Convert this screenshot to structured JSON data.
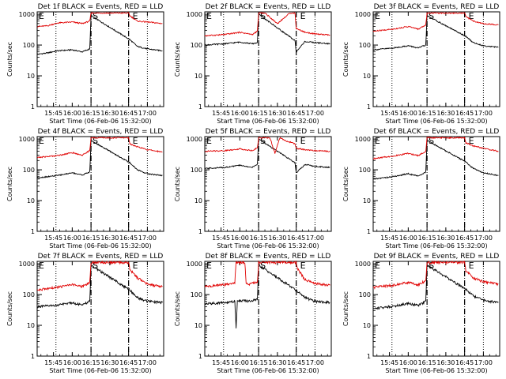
{
  "figure": {
    "colors": {
      "events": "#000000",
      "lld": "#e00000",
      "axes": "#000000",
      "background": "#ffffff"
    }
  },
  "chart_data": [
    {
      "type": "line",
      "title": "Det 1f BLACK = Events, RED = LLD",
      "xlabel": "Start Time (06-Feb-06 15:32:00)",
      "ylabel": "Counts/sec",
      "yscale": "log",
      "ylim": [
        1,
        1200
      ],
      "xlim": [
        "15:32",
        "17:13"
      ],
      "x_tick_labels": [
        "15:45",
        "16:00",
        "16:15",
        "16:30",
        "16:45",
        "17:00"
      ],
      "y_tick_labels": [
        "1",
        "10",
        "100",
        "1000"
      ],
      "markers": {
        "S": "16:15",
        "E": "16:45"
      },
      "dotted_lines": [
        "15:47",
        "16:15",
        "16:45",
        "17:00"
      ],
      "dashed_lines": [
        "16:15",
        "16:45"
      ],
      "grid": false,
      "series": [
        {
          "name": "Events",
          "color": "#000000",
          "x": [
            "15:32",
            "15:40",
            "15:48",
            "16:00",
            "16:08",
            "16:14",
            "16:15",
            "16:46",
            "16:52",
            "17:00",
            "17:12"
          ],
          "values": [
            50,
            55,
            65,
            70,
            60,
            75,
            900,
            150,
            90,
            75,
            65
          ]
        },
        {
          "name": "LLD",
          "color": "#e00000",
          "x": [
            "15:32",
            "15:40",
            "15:48",
            "16:00",
            "16:08",
            "16:14",
            "16:15",
            "16:45",
            "16:46",
            "16:52",
            "17:00",
            "17:12"
          ],
          "values": [
            400,
            420,
            520,
            560,
            500,
            600,
            1100,
            1100,
            900,
            600,
            560,
            500
          ]
        }
      ]
    },
    {
      "type": "line",
      "title": "Det 2f BLACK = Events, RED = LLD",
      "xlabel": "Start Time (06-Feb-06 15:32:00)",
      "ylabel": "Counts/sec",
      "yscale": "log",
      "ylim": [
        1,
        1200
      ],
      "xlim": [
        "15:32",
        "17:13"
      ],
      "x_tick_labels": [
        "15:45",
        "16:00",
        "16:15",
        "16:30",
        "16:45",
        "17:00"
      ],
      "y_tick_labels": [
        "1",
        "10",
        "100",
        "1000"
      ],
      "markers": {
        "S": "16:15",
        "E": "16:45"
      },
      "dotted_lines": [
        "15:47",
        "16:15",
        "16:45",
        "17:00"
      ],
      "dashed_lines": [
        "16:15",
        "16:45"
      ],
      "grid": false,
      "series": [
        {
          "name": "Events",
          "color": "#000000",
          "x": [
            "15:32",
            "15:48",
            "16:00",
            "16:10",
            "16:14",
            "16:15",
            "16:44",
            "16:45",
            "16:52",
            "17:00",
            "17:12"
          ],
          "values": [
            100,
            110,
            125,
            110,
            120,
            1000,
            140,
            60,
            130,
            120,
            110
          ]
        },
        {
          "name": "LLD",
          "color": "#e00000",
          "x": [
            "15:32",
            "15:48",
            "16:00",
            "16:10",
            "16:14",
            "16:15",
            "16:20",
            "16:30",
            "16:40",
            "16:44",
            "16:45",
            "16:52",
            "17:00",
            "17:12"
          ],
          "values": [
            200,
            220,
            260,
            220,
            280,
            1100,
            1100,
            500,
            1100,
            1100,
            350,
            260,
            230,
            210
          ]
        }
      ]
    },
    {
      "type": "line",
      "title": "Det 3f BLACK = Events, RED = LLD",
      "xlabel": "Start Time (06-Feb-06 15:32:00)",
      "ylabel": "Counts/sec",
      "yscale": "log",
      "ylim": [
        1,
        1200
      ],
      "xlim": [
        "15:32",
        "17:13"
      ],
      "x_tick_labels": [
        "15:45",
        "16:00",
        "16:15",
        "16:30",
        "16:45",
        "17:00"
      ],
      "y_tick_labels": [
        "1",
        "10",
        "100",
        "1000"
      ],
      "markers": {
        "S": "16:15",
        "E": "16:45"
      },
      "dotted_lines": [
        "15:47",
        "16:15",
        "16:45",
        "17:00"
      ],
      "dashed_lines": [
        "16:15",
        "16:45"
      ],
      "grid": false,
      "series": [
        {
          "name": "Events",
          "color": "#000000",
          "x": [
            "15:32",
            "15:48",
            "16:00",
            "16:08",
            "16:14",
            "16:15",
            "16:46",
            "16:52",
            "17:00",
            "17:12"
          ],
          "values": [
            70,
            80,
            95,
            80,
            100,
            900,
            190,
            120,
            95,
            85
          ]
        },
        {
          "name": "LLD",
          "color": "#e00000",
          "x": [
            "15:32",
            "15:48",
            "16:00",
            "16:08",
            "16:14",
            "16:15",
            "16:45",
            "16:46",
            "16:52",
            "17:00",
            "17:12"
          ],
          "values": [
            280,
            330,
            400,
            330,
            450,
            1100,
            1100,
            850,
            600,
            500,
            450
          ]
        }
      ]
    },
    {
      "type": "line",
      "title": "Det 4f BLACK = Events, RED = LLD",
      "xlabel": "Start Time (06-Feb-06 15:32:00)",
      "ylabel": "Counts/sec",
      "yscale": "log",
      "ylim": [
        1,
        1200
      ],
      "xlim": [
        "15:32",
        "17:13"
      ],
      "x_tick_labels": [
        "15:45",
        "16:00",
        "16:15",
        "16:30",
        "16:45",
        "17:00"
      ],
      "y_tick_labels": [
        "1",
        "10",
        "100",
        "1000"
      ],
      "markers": {
        "S": "16:15",
        "E": "16:45"
      },
      "dotted_lines": [
        "15:47",
        "16:15",
        "16:45",
        "17:00"
      ],
      "dashed_lines": [
        "16:15",
        "16:45"
      ],
      "grid": false,
      "series": [
        {
          "name": "Events",
          "color": "#000000",
          "x": [
            "15:32",
            "15:48",
            "16:00",
            "16:08",
            "16:14",
            "16:15",
            "16:46",
            "16:52",
            "17:00",
            "17:12"
          ],
          "values": [
            55,
            65,
            80,
            68,
            85,
            900,
            170,
            100,
            75,
            65
          ]
        },
        {
          "name": "LLD",
          "color": "#e00000",
          "x": [
            "15:32",
            "15:48",
            "16:00",
            "16:08",
            "16:14",
            "16:15",
            "16:45",
            "16:46",
            "16:52",
            "17:00",
            "17:12"
          ],
          "values": [
            250,
            290,
            360,
            300,
            420,
            1100,
            1100,
            700,
            560,
            450,
            380
          ]
        }
      ]
    },
    {
      "type": "line",
      "title": "Det 5f BLACK = Events, RED = LLD",
      "xlabel": "Start Time (06-Feb-06 15:32:00)",
      "ylabel": "Counts/sec",
      "yscale": "log",
      "ylim": [
        1,
        1200
      ],
      "xlim": [
        "15:32",
        "17:13"
      ],
      "x_tick_labels": [
        "15:45",
        "16:00",
        "16:15",
        "16:30",
        "16:45",
        "17:00"
      ],
      "y_tick_labels": [
        "1",
        "10",
        "100",
        "1000"
      ],
      "markers": {
        "S": "16:15",
        "E": "16:45"
      },
      "dotted_lines": [
        "15:47",
        "16:15",
        "16:45",
        "17:00"
      ],
      "dashed_lines": [
        "16:15",
        "16:45"
      ],
      "grid": false,
      "series": [
        {
          "name": "Events",
          "color": "#000000",
          "x": [
            "15:32",
            "15:48",
            "16:00",
            "16:10",
            "16:14",
            "16:15",
            "16:44",
            "16:45",
            "16:52",
            "17:00",
            "17:12"
          ],
          "values": [
            110,
            120,
            140,
            120,
            150,
            1000,
            170,
            80,
            150,
            130,
            120
          ]
        },
        {
          "name": "LLD",
          "color": "#e00000",
          "x": [
            "15:32",
            "15:48",
            "16:00",
            "16:10",
            "16:14",
            "16:15",
            "16:24",
            "16:28",
            "16:32",
            "16:36",
            "16:44",
            "16:45",
            "16:52",
            "17:00",
            "17:12"
          ],
          "values": [
            400,
            420,
            480,
            420,
            520,
            1100,
            1100,
            350,
            1100,
            900,
            700,
            500,
            450,
            420,
            400
          ]
        }
      ]
    },
    {
      "type": "line",
      "title": "Det 6f BLACK = Events, RED = LLD",
      "xlabel": "Start Time (06-Feb-06 15:32:00)",
      "ylabel": "Counts/sec",
      "yscale": "log",
      "ylim": [
        1,
        1200
      ],
      "xlim": [
        "15:32",
        "17:13"
      ],
      "x_tick_labels": [
        "15:45",
        "16:00",
        "16:15",
        "16:30",
        "16:45",
        "17:00"
      ],
      "y_tick_labels": [
        "1",
        "10",
        "100",
        "1000"
      ],
      "markers": {
        "S": "16:15",
        "E": "16:45"
      },
      "dotted_lines": [
        "15:47",
        "16:15",
        "16:45",
        "17:00"
      ],
      "dashed_lines": [
        "16:15",
        "16:45"
      ],
      "grid": false,
      "series": [
        {
          "name": "Events",
          "color": "#000000",
          "x": [
            "15:32",
            "15:48",
            "16:00",
            "16:08",
            "16:14",
            "16:15",
            "16:46",
            "16:52",
            "17:00",
            "17:12"
          ],
          "values": [
            50,
            60,
            75,
            62,
            85,
            900,
            180,
            110,
            80,
            65
          ]
        },
        {
          "name": "LLD",
          "color": "#e00000",
          "x": [
            "15:32",
            "15:48",
            "16:00",
            "16:08",
            "16:14",
            "16:15",
            "16:45",
            "16:46",
            "16:52",
            "17:00",
            "17:12"
          ],
          "values": [
            230,
            280,
            340,
            290,
            400,
            1100,
            1100,
            750,
            600,
            500,
            400
          ]
        }
      ]
    },
    {
      "type": "line",
      "title": "Det 7f BLACK = Events, RED = LLD",
      "xlabel": "Start Time (06-Feb-06 15:32:00)",
      "ylabel": "Counts/sec",
      "yscale": "log",
      "ylim": [
        1,
        1200
      ],
      "xlim": [
        "15:32",
        "17:13"
      ],
      "x_tick_labels": [
        "15:45",
        "16:00",
        "16:15",
        "16:30",
        "16:45",
        "17:00"
      ],
      "y_tick_labels": [
        "1",
        "10",
        "100",
        "1000"
      ],
      "markers": {
        "S": "16:15",
        "E": "16:45"
      },
      "dotted_lines": [
        "15:47",
        "16:15",
        "16:45",
        "17:00"
      ],
      "dashed_lines": [
        "16:15",
        "16:45"
      ],
      "grid": false,
      "series": [
        {
          "name": "Events",
          "color": "#000000",
          "x": [
            "15:32",
            "15:48",
            "16:00",
            "16:08",
            "16:14",
            "16:15",
            "16:46",
            "16:52",
            "17:00",
            "17:12"
          ],
          "values": [
            40,
            45,
            55,
            45,
            60,
            900,
            140,
            80,
            60,
            55
          ]
        },
        {
          "name": "LLD",
          "color": "#e00000",
          "x": [
            "15:32",
            "15:48",
            "16:00",
            "16:08",
            "16:14",
            "16:15",
            "16:45",
            "16:46",
            "16:52",
            "17:00",
            "17:12"
          ],
          "values": [
            140,
            170,
            210,
            180,
            250,
            1100,
            1100,
            650,
            350,
            220,
            180
          ]
        }
      ]
    },
    {
      "type": "line",
      "title": "Det 8f BLACK = Events, RED = LLD",
      "xlabel": "Start Time (06-Feb-06 15:32:00)",
      "ylabel": "Counts/sec",
      "yscale": "log",
      "ylim": [
        1,
        1200
      ],
      "xlim": [
        "15:32",
        "17:13"
      ],
      "x_tick_labels": [
        "15:45",
        "16:00",
        "16:15",
        "16:30",
        "16:45",
        "17:00"
      ],
      "y_tick_labels": [
        "1",
        "10",
        "100",
        "1000"
      ],
      "markers": {
        "S": "16:15",
        "E": "16:45"
      },
      "dotted_lines": [
        "15:47",
        "16:15",
        "16:45",
        "17:00"
      ],
      "dashed_lines": [
        "16:15",
        "16:45"
      ],
      "grid": false,
      "series": [
        {
          "name": "Events",
          "color": "#000000",
          "x": [
            "15:32",
            "15:48",
            "15:56",
            "15:57",
            "15:58",
            "16:00",
            "16:08",
            "16:14",
            "16:15",
            "16:46",
            "16:52",
            "17:00",
            "17:12"
          ],
          "values": [
            50,
            55,
            60,
            8,
            60,
            65,
            60,
            70,
            900,
            130,
            80,
            60,
            55
          ]
        },
        {
          "name": "LLD",
          "color": "#e00000",
          "x": [
            "15:32",
            "15:48",
            "15:56",
            "15:57",
            "16:00",
            "16:04",
            "16:05",
            "16:08",
            "16:14",
            "16:15",
            "16:45",
            "16:46",
            "16:52",
            "17:00",
            "17:12"
          ],
          "values": [
            180,
            210,
            240,
            1100,
            1100,
            1100,
            230,
            220,
            260,
            1100,
            1100,
            700,
            300,
            230,
            200
          ]
        }
      ]
    },
    {
      "type": "line",
      "title": "Det 9f BLACK = Events, RED = LLD",
      "xlabel": "Start Time (06-Feb-06 15:32:00)",
      "ylabel": "Counts/sec",
      "yscale": "log",
      "ylim": [
        1,
        1200
      ],
      "xlim": [
        "15:32",
        "17:13"
      ],
      "x_tick_labels": [
        "15:45",
        "16:00",
        "16:15",
        "16:30",
        "16:45",
        "17:00"
      ],
      "y_tick_labels": [
        "1",
        "10",
        "100",
        "1000"
      ],
      "markers": {
        "S": "16:15",
        "E": "16:45"
      },
      "dotted_lines": [
        "15:47",
        "16:15",
        "16:45",
        "17:00"
      ],
      "dashed_lines": [
        "16:15",
        "16:45"
      ],
      "grid": false,
      "series": [
        {
          "name": "Events",
          "color": "#000000",
          "x": [
            "15:32",
            "15:48",
            "16:00",
            "16:08",
            "16:14",
            "16:15",
            "16:46",
            "16:52",
            "17:00",
            "17:12"
          ],
          "values": [
            35,
            42,
            52,
            44,
            60,
            900,
            150,
            90,
            65,
            55
          ]
        },
        {
          "name": "LLD",
          "color": "#e00000",
          "x": [
            "15:32",
            "15:48",
            "16:00",
            "16:08",
            "16:14",
            "16:15",
            "16:45",
            "16:46",
            "16:52",
            "17:00",
            "17:12"
          ],
          "values": [
            170,
            200,
            250,
            210,
            280,
            1100,
            1100,
            600,
            350,
            260,
            220
          ]
        }
      ]
    }
  ]
}
